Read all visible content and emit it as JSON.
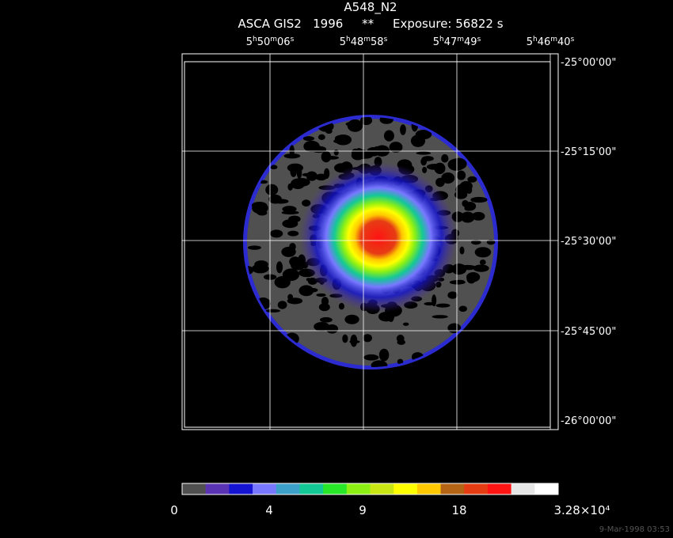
{
  "header": {
    "title": "A548_N2",
    "subtitle": "ASCA GIS2   1996     **     Exposure: 56822 s"
  },
  "axes": {
    "top": [
      "5h50m06s",
      "5h48m58s",
      "5h47m49s",
      "5h46m40s"
    ],
    "right": [
      "-25°00'00\"",
      "-25°15'00\"",
      "-25°30'00\"",
      "-25°45'00\"",
      "-26°00'00\""
    ]
  },
  "colorbar": {
    "labels": [
      "0",
      "4",
      "9",
      "18",
      "3.28×10⁴"
    ],
    "colors": [
      "#505050",
      "#5a32b4",
      "#1414d2",
      "#7878ff",
      "#3ca0c8",
      "#14c896",
      "#28e628",
      "#8cf014",
      "#c8e614",
      "#ffff00",
      "#ffc800",
      "#b46414",
      "#e63c14",
      "#ff1414",
      "#e6e6e6",
      "#ffffff"
    ]
  },
  "footer": {
    "timestamp": "9-Mar-1998 03:53"
  }
}
